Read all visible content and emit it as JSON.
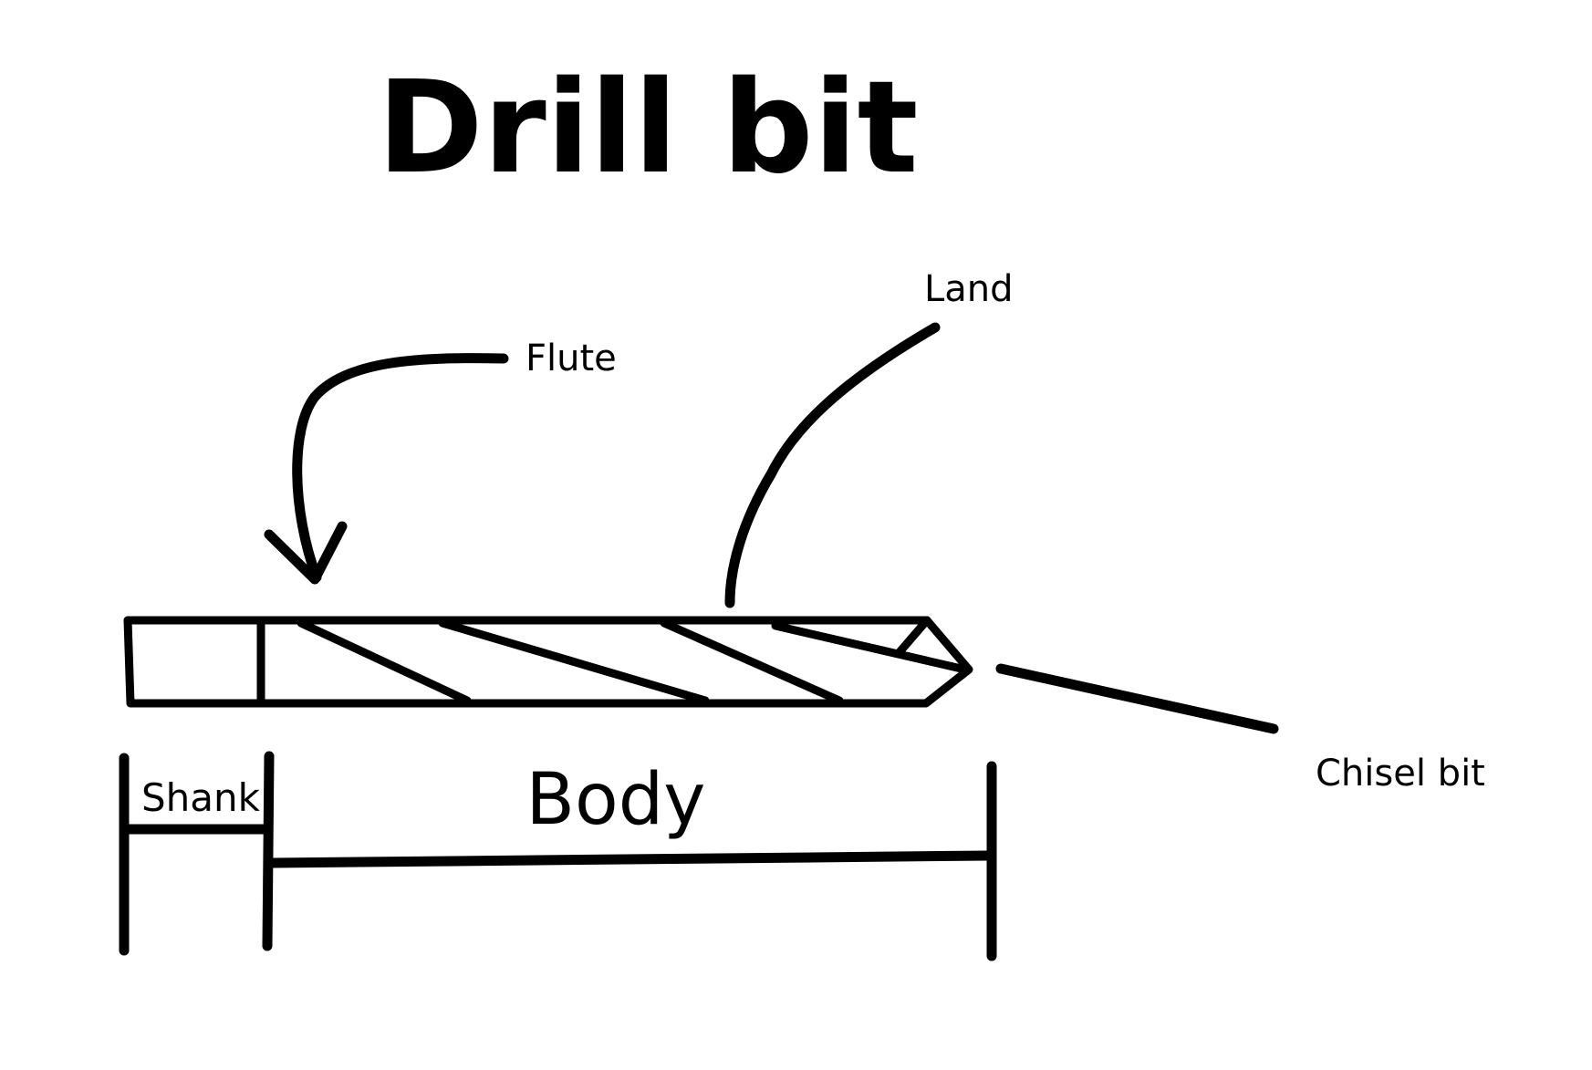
{
  "diagram": {
    "title": "Drill bit",
    "labels": {
      "flute": "Flute",
      "land": "Land",
      "chisel_bit": "Chisel bit",
      "shank": "Shank",
      "body": "Body"
    }
  }
}
